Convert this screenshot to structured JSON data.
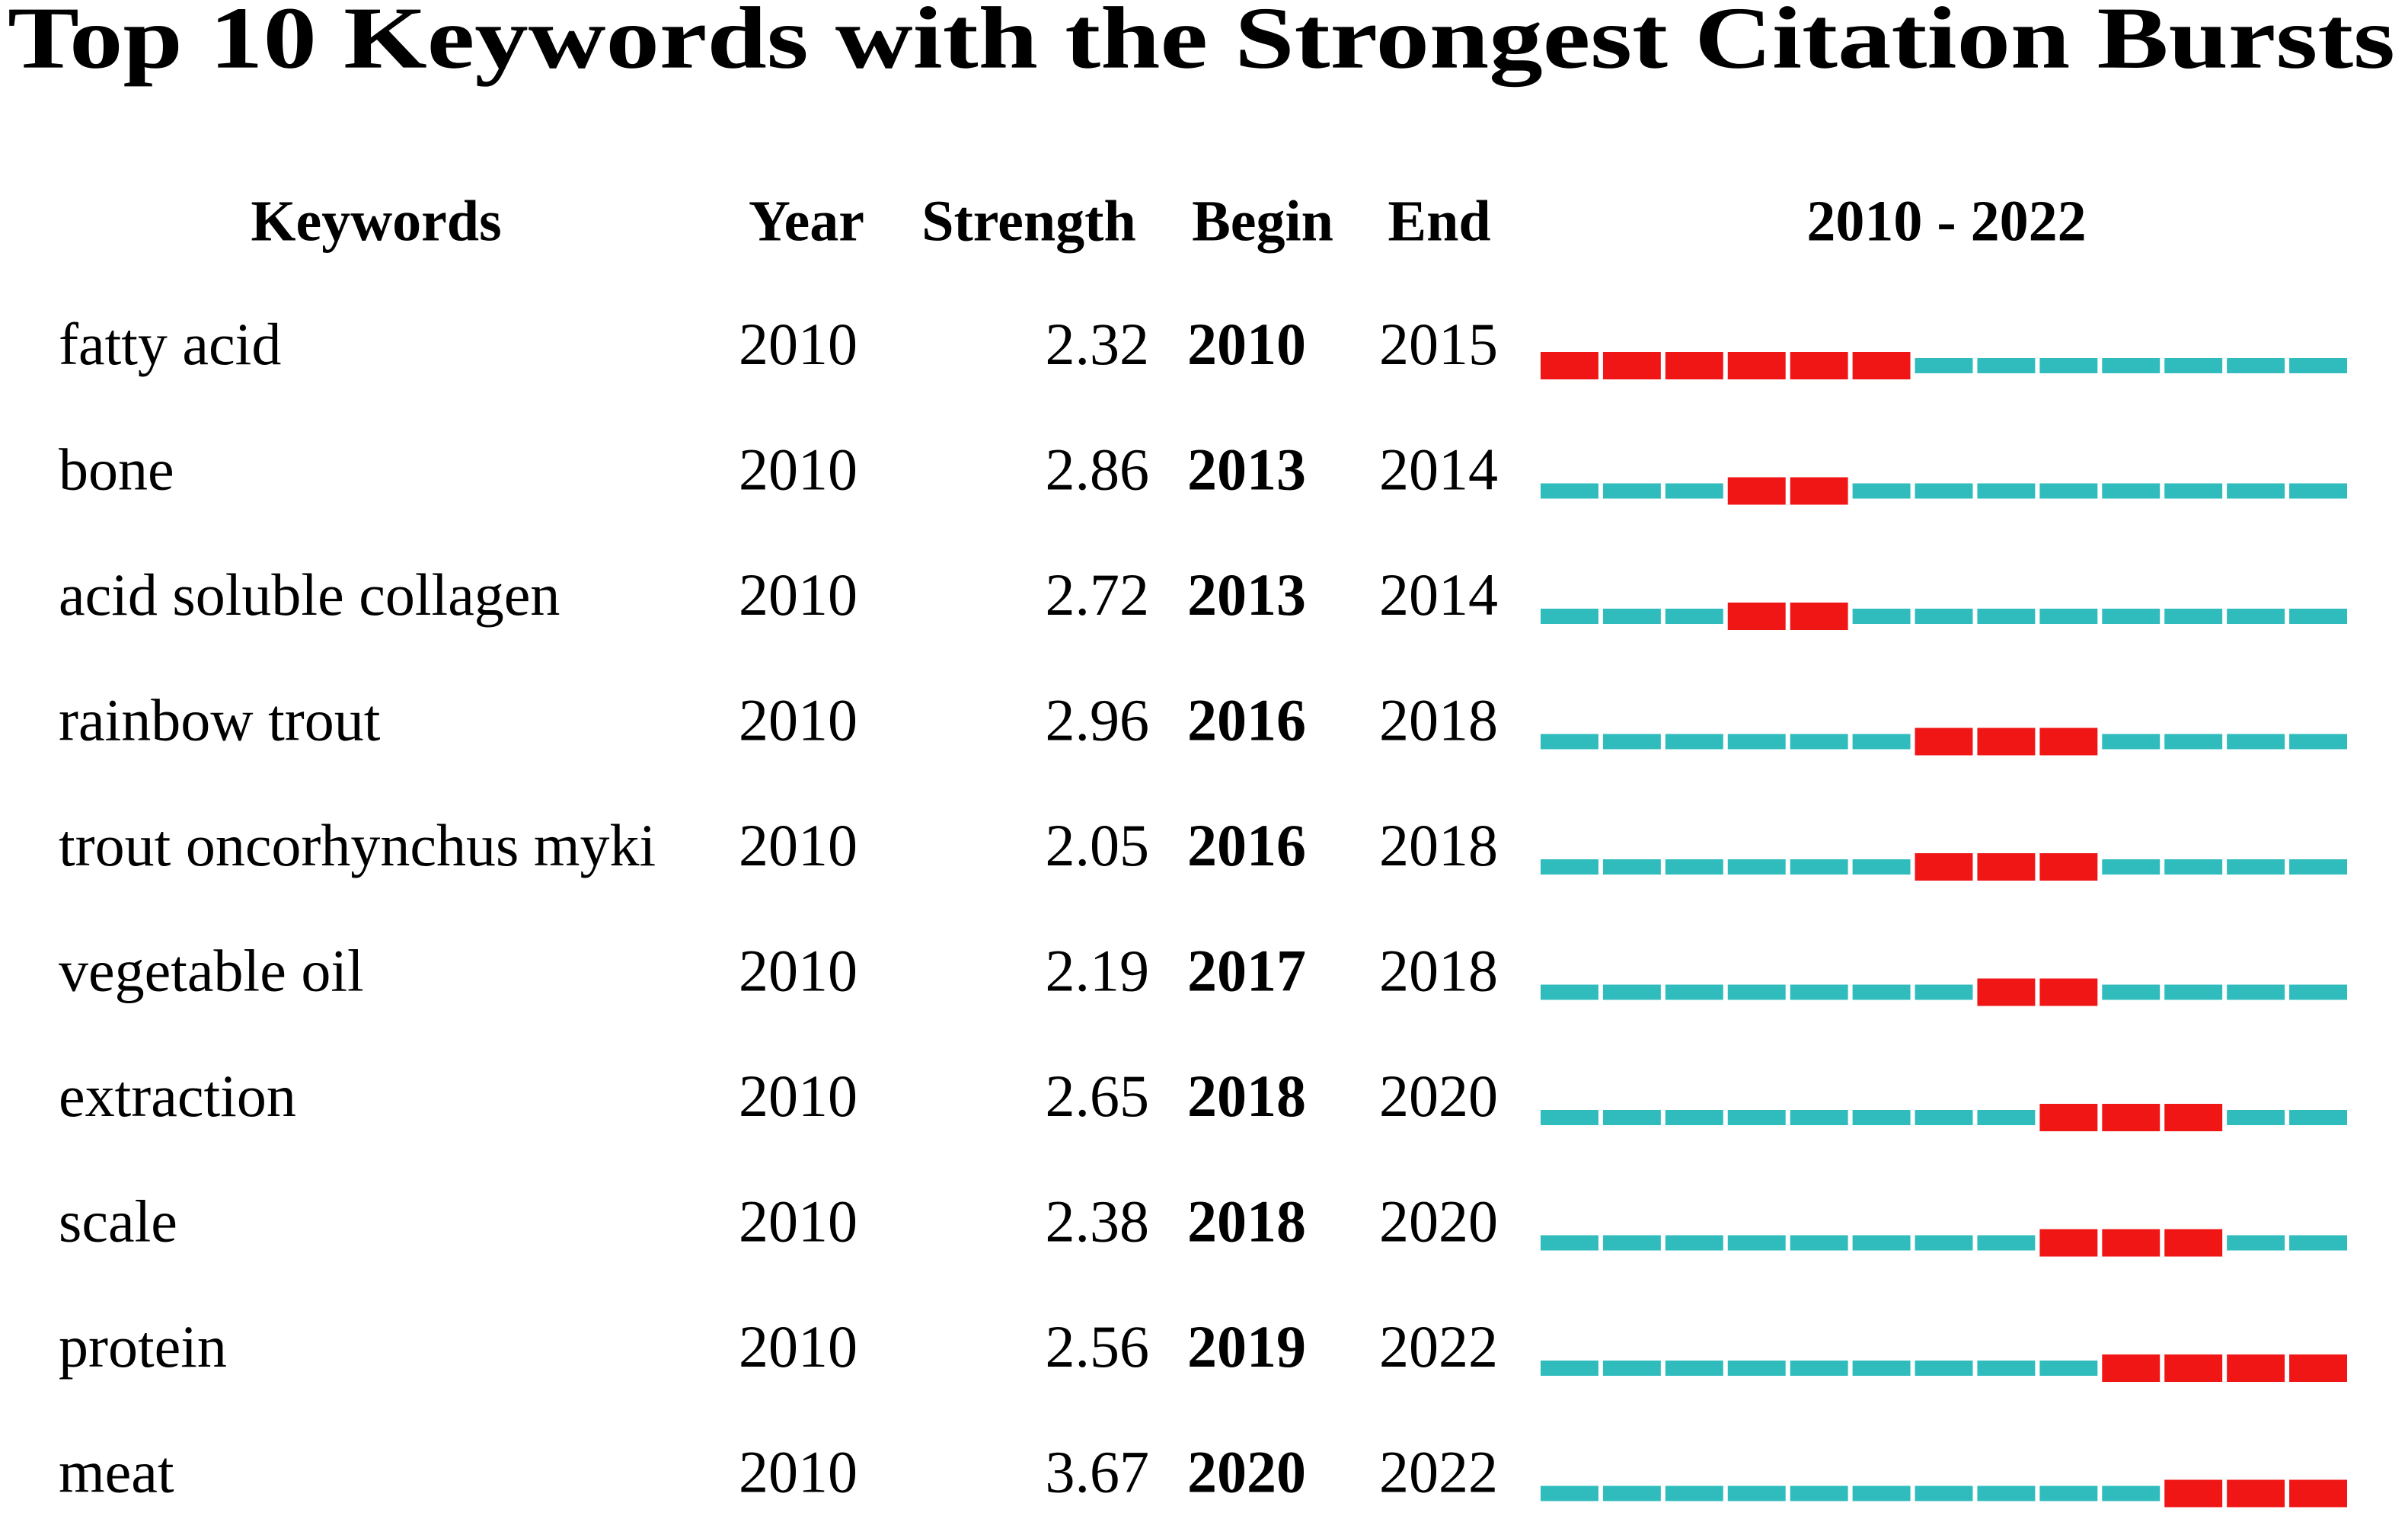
{
  "title": "Top 10 Keywords with the Strongest Citation Bursts",
  "table": {
    "headers": {
      "keyword": "Keywords",
      "year": "Year",
      "strength": "Strength",
      "begin": "Begin",
      "end": "End",
      "range": "2010 - 2022"
    },
    "timeline": {
      "start": 2010,
      "end": 2022,
      "burst_color": "#f01616",
      "base_color": "#30bcbc"
    },
    "rows": [
      {
        "keyword": "fatty acid",
        "year": 2010,
        "strength": 2.32,
        "begin": 2010,
        "end": 2015
      },
      {
        "keyword": "bone",
        "year": 2010,
        "strength": 2.86,
        "begin": 2013,
        "end": 2014
      },
      {
        "keyword": "acid soluble collagen",
        "year": 2010,
        "strength": 2.72,
        "begin": 2013,
        "end": 2014
      },
      {
        "keyword": "rainbow trout",
        "year": 2010,
        "strength": 2.96,
        "begin": 2016,
        "end": 2018
      },
      {
        "keyword": "trout oncorhynchus myki",
        "year": 2010,
        "strength": 2.05,
        "begin": 2016,
        "end": 2018
      },
      {
        "keyword": "vegetable oil",
        "year": 2010,
        "strength": 2.19,
        "begin": 2017,
        "end": 2018
      },
      {
        "keyword": "extraction",
        "year": 2010,
        "strength": 2.65,
        "begin": 2018,
        "end": 2020
      },
      {
        "keyword": "scale",
        "year": 2010,
        "strength": 2.38,
        "begin": 2018,
        "end": 2020
      },
      {
        "keyword": "protein",
        "year": 2010,
        "strength": 2.56,
        "begin": 2019,
        "end": 2022
      },
      {
        "keyword": "meat",
        "year": 2010,
        "strength": 3.67,
        "begin": 2020,
        "end": 2022
      }
    ]
  }
}
